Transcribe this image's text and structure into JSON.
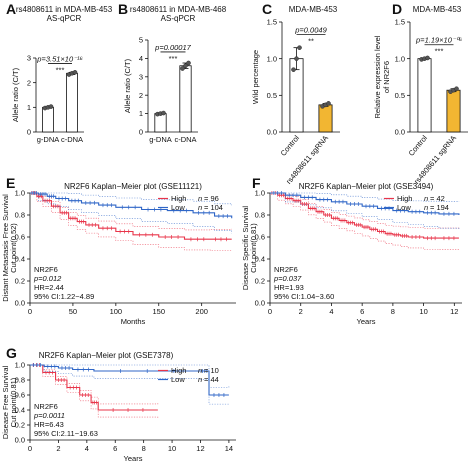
{
  "chart_data": [
    {
      "panel": "A",
      "type": "bar",
      "title": "rs4808611 in MDA-MB-453 AS-qPCR",
      "ylabel": "Allele ratio (C/T)",
      "ylim": [
        0,
        3
      ],
      "yticks": [
        0,
        1,
        2,
        3
      ],
      "categories": [
        "g-DNA",
        "c-DNA"
      ],
      "values": [
        1.0,
        2.38
      ],
      "points": [
        [
          0.97,
          1.0,
          1.03
        ],
        [
          2.33,
          2.38,
          2.42
        ]
      ],
      "bar_color": "#ffffff",
      "p_text": "p=3.51×10⁻¹⁶",
      "sig": "***"
    },
    {
      "panel": "B",
      "type": "bar",
      "title": "rs4808611 in MDA-MB-468 AS-qPCR",
      "ylabel": "Allele ratio (C/T)",
      "ylim": [
        0,
        5
      ],
      "yticks": [
        0,
        1,
        2,
        3,
        4,
        5
      ],
      "categories": [
        "g-DNA",
        "c-DNA"
      ],
      "values": [
        1.0,
        3.6
      ],
      "points": [
        [
          0.97,
          1.0,
          1.03
        ],
        [
          3.45,
          3.6,
          3.75
        ]
      ],
      "bar_color": "#ffffff",
      "p_text": "p=0.00017",
      "sig": "***"
    },
    {
      "panel": "C",
      "type": "bar",
      "title": "MDA-MB-453",
      "ylabel": "Wild percentage",
      "ylim": [
        0,
        1.5
      ],
      "yticks": [
        0.0,
        0.5,
        1.0,
        1.5
      ],
      "categories": [
        "Control",
        "rs4808611 sgRNA"
      ],
      "values": [
        1.0,
        0.37
      ],
      "points": [
        [
          0.85,
          1.0,
          1.15
        ],
        [
          0.35,
          0.37,
          0.39
        ]
      ],
      "bar_colors": [
        "#ffffff",
        "#f2b632"
      ],
      "p_text": "p=0.0049",
      "sig": "**"
    },
    {
      "panel": "D",
      "type": "bar",
      "title": "MDA-MB-453",
      "ylabel": "Relative expression level of NR2F6",
      "ylim": [
        0,
        1.5
      ],
      "yticks": [
        0.0,
        0.5,
        1.0,
        1.5
      ],
      "categories": [
        "Control",
        "rs4808611 sgRNA"
      ],
      "values": [
        1.0,
        0.57
      ],
      "points": [
        [
          0.99,
          1.0,
          1.01
        ],
        [
          0.55,
          0.57,
          0.59
        ]
      ],
      "bar_colors": [
        "#ffffff",
        "#f2b632"
      ],
      "p_text": "p=1.19×10⁻⁰⁶",
      "sig": "***"
    },
    {
      "panel": "E",
      "type": "line",
      "title": "NR2F6 Kaplan−Meier plot (GSE11121)",
      "xlabel": "Months",
      "ylabel": "Distant Metastasis Free Survival",
      "ylabel2": "Cut point(0.52)",
      "xlim": [
        0,
        240
      ],
      "xticks": [
        0,
        50,
        100,
        150,
        200
      ],
      "ylim": [
        0,
        1
      ],
      "yticks": [
        0.0,
        0.2,
        0.4,
        0.6,
        0.8,
        1.0
      ],
      "series": [
        {
          "name": "High",
          "n": "96",
          "color": "#e8354a",
          "x": [
            0,
            8,
            15,
            25,
            35,
            45,
            55,
            65,
            80,
            100,
            120,
            150,
            180,
            210,
            235
          ],
          "y": [
            1.0,
            0.97,
            0.93,
            0.88,
            0.82,
            0.77,
            0.74,
            0.71,
            0.68,
            0.65,
            0.62,
            0.6,
            0.58,
            0.58,
            0.58
          ]
        },
        {
          "name": "Low",
          "n": "104",
          "color": "#2f66c7",
          "x": [
            0,
            10,
            20,
            30,
            45,
            60,
            80,
            100,
            130,
            160,
            190,
            215,
            235
          ],
          "y": [
            1.0,
            0.99,
            0.97,
            0.95,
            0.93,
            0.91,
            0.89,
            0.87,
            0.85,
            0.84,
            0.82,
            0.79,
            0.77
          ]
        }
      ],
      "legend_n_label": "n",
      "stats": [
        "NR2F6",
        "p=0.012",
        "HR=2.44",
        "95% CI:1.22−4.89"
      ]
    },
    {
      "panel": "F",
      "type": "line",
      "title": "NR2F6 Kaplan−Meier plot (GSE3494)",
      "xlabel": "Years",
      "ylabel": "Disease Specific Survival",
      "ylabel2": "Cut point(0.81)",
      "xlim": [
        0,
        12.5
      ],
      "xticks": [
        0,
        2,
        4,
        6,
        8,
        10,
        12
      ],
      "ylim": [
        0,
        1
      ],
      "yticks": [
        0.0,
        0.2,
        0.4,
        0.6,
        0.8,
        1.0
      ],
      "series": [
        {
          "name": "High",
          "n": "42",
          "color": "#e8354a",
          "x": [
            0,
            0.5,
            1,
            1.5,
            2,
            2.5,
            3,
            3.5,
            4,
            4.5,
            5,
            5.5,
            6,
            6.5,
            7,
            7.5,
            8,
            8.5,
            9,
            10,
            11,
            12.3
          ],
          "y": [
            1.0,
            0.98,
            0.95,
            0.93,
            0.9,
            0.86,
            0.83,
            0.8,
            0.77,
            0.75,
            0.73,
            0.71,
            0.69,
            0.67,
            0.65,
            0.63,
            0.62,
            0.61,
            0.6,
            0.59,
            0.59,
            0.59
          ]
        },
        {
          "name": "Low",
          "n": "194",
          "color": "#2f66c7",
          "x": [
            0,
            1,
            2,
            3,
            4,
            5,
            6,
            7,
            8,
            9,
            10,
            11,
            12.3
          ],
          "y": [
            1.0,
            0.98,
            0.96,
            0.94,
            0.92,
            0.9,
            0.88,
            0.86,
            0.84,
            0.83,
            0.82,
            0.81,
            0.8
          ]
        }
      ],
      "legend_n_label": "n",
      "stats": [
        "NR2F6",
        "p=0.037",
        "HR=1.93",
        "95% CI:1.04−3.60"
      ]
    },
    {
      "panel": "G",
      "type": "line",
      "title": "NR2F6 Kaplan−Meier plot (GSE7378)",
      "xlabel": "Years",
      "ylabel": "Disease Free Survival",
      "ylabel2": "Cut point(0.81)",
      "xlim": [
        0,
        14.5
      ],
      "xticks": [
        0,
        2,
        4,
        6,
        8,
        10,
        12,
        14
      ],
      "ylim": [
        0,
        1
      ],
      "yticks": [
        0.0,
        0.2,
        0.4,
        0.6,
        0.8,
        1.0
      ],
      "series": [
        {
          "name": "High",
          "n": "10",
          "color": "#e8354a",
          "x": [
            0,
            0.9,
            1.8,
            2.6,
            3.5,
            4.3,
            4.8,
            9.0
          ],
          "y": [
            1.0,
            0.9,
            0.8,
            0.7,
            0.6,
            0.5,
            0.4,
            0.4
          ]
        },
        {
          "name": "Low",
          "n": "44",
          "color": "#2f66c7",
          "x": [
            0,
            1.0,
            2.0,
            3.0,
            4.5,
            12.0,
            12.6,
            14.0
          ],
          "y": [
            1.0,
            0.98,
            0.96,
            0.94,
            0.92,
            0.92,
            0.6,
            0.6
          ]
        }
      ],
      "legend_n_label": "n",
      "stats": [
        "NR2F6",
        "p=0.0011",
        "HR=6.43",
        "95% CI:2.11−19.63"
      ]
    }
  ]
}
